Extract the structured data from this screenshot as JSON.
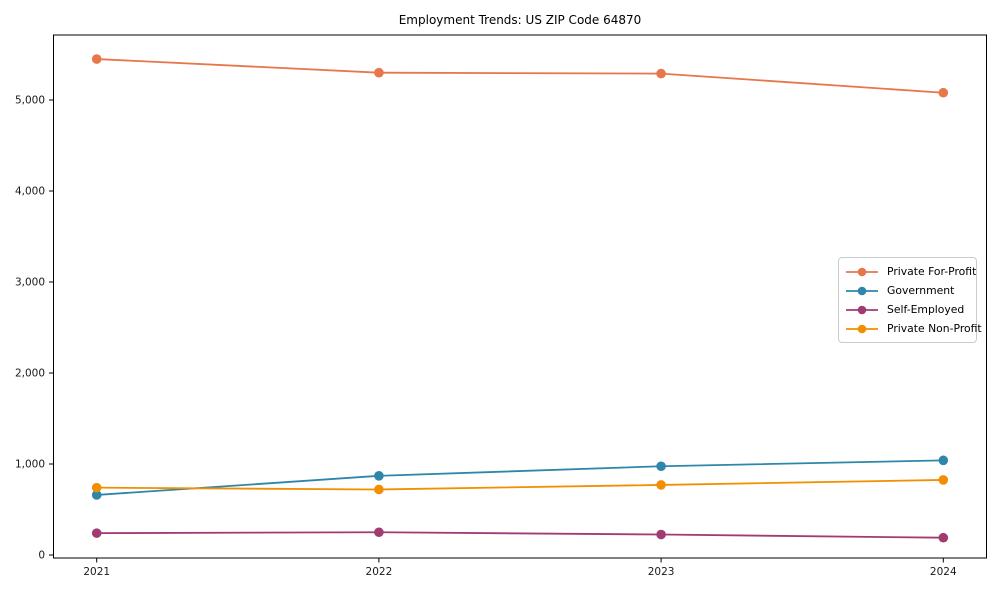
{
  "chart_data": {
    "type": "line",
    "title": "Employment Trends: US ZIP Code 64870",
    "x": [
      2021,
      2022,
      2023,
      2024
    ],
    "xtick_labels": [
      "2021",
      "2022",
      "2023",
      "2024"
    ],
    "yticks": [
      0,
      1000,
      2000,
      3000,
      4000,
      5000
    ],
    "ytick_labels": [
      "0",
      "1,000",
      "2,000",
      "3,000",
      "4,000",
      "5,000"
    ],
    "ylim": [
      -30,
      5715
    ],
    "xlabel": "",
    "ylabel": "",
    "grid": false,
    "marker": "circle",
    "legend_position": "center-right",
    "series": [
      {
        "name": "Private For-Profit",
        "color": "#e8764b",
        "values": [
          5450,
          5300,
          5290,
          5080
        ]
      },
      {
        "name": "Government",
        "color": "#2e86ab",
        "values": [
          660,
          870,
          975,
          1040
        ]
      },
      {
        "name": "Self-Employed",
        "color": "#a23b72",
        "values": [
          240,
          250,
          225,
          190
        ]
      },
      {
        "name": "Private Non-Profit",
        "color": "#f18f01",
        "values": [
          740,
          720,
          770,
          825
        ]
      }
    ]
  },
  "style": {
    "background": "#ffffff",
    "spine_color": "#000000",
    "tick_color": "#1a1a1a",
    "legend_border": "#cccccc"
  }
}
